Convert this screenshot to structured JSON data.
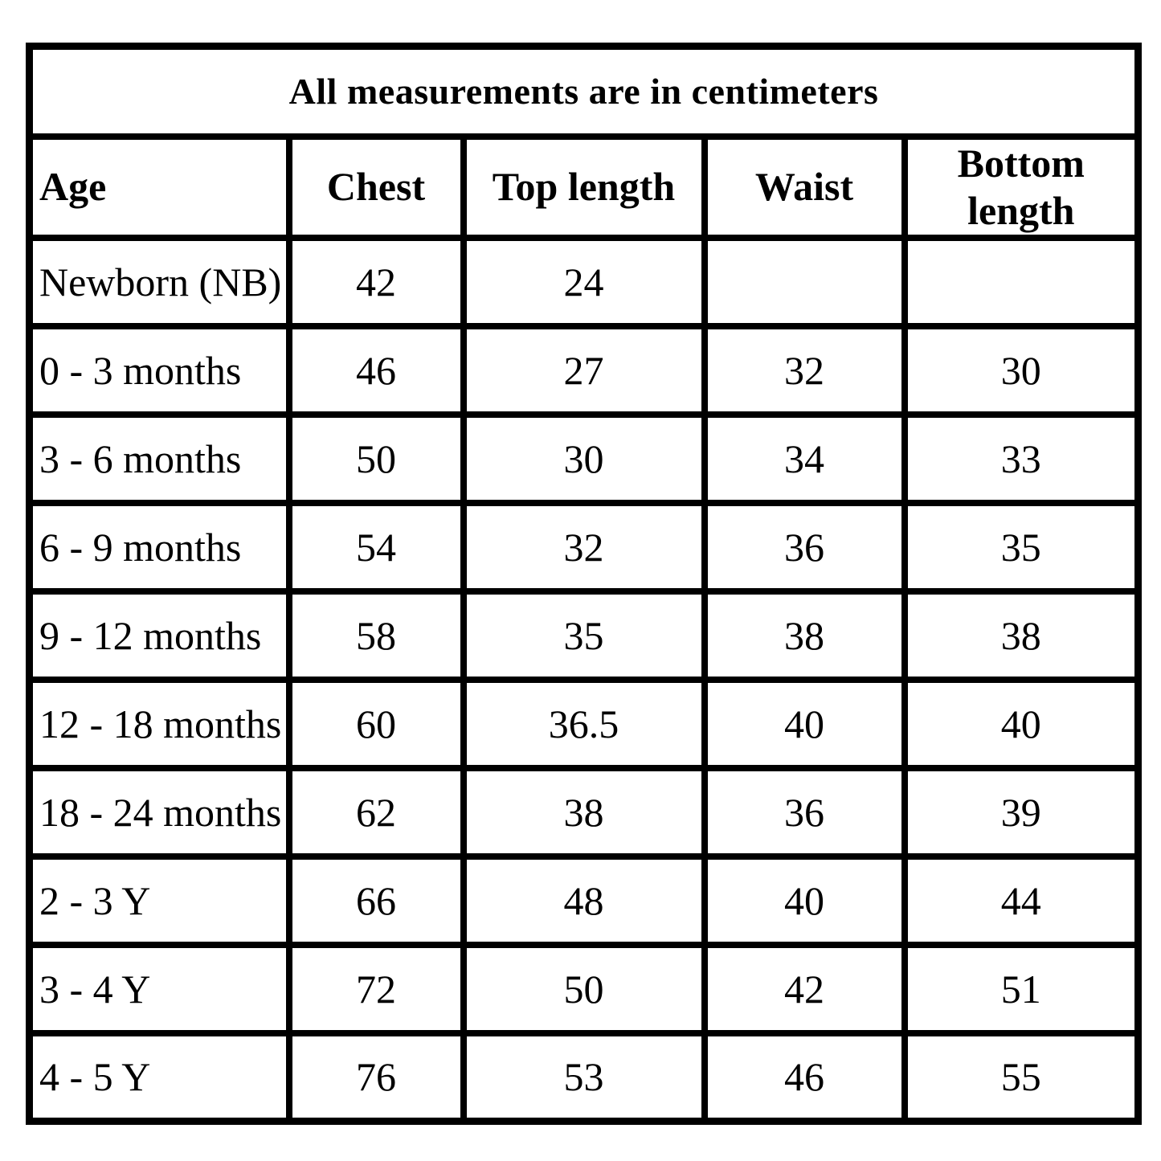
{
  "page": {
    "background": "#ffffff"
  },
  "chart_data": {
    "type": "table",
    "title": "All measurements are in centimeters",
    "columns": [
      "Age",
      "Chest",
      "Top length",
      "Waist",
      "Bottom length"
    ],
    "rows": [
      [
        "Newborn (NB)",
        "42",
        "24",
        "",
        ""
      ],
      [
        "0 - 3 months",
        "46",
        "27",
        "32",
        "30"
      ],
      [
        "3 - 6 months",
        "50",
        "30",
        "34",
        "33"
      ],
      [
        "6 - 9 months",
        "54",
        "32",
        "36",
        "35"
      ],
      [
        "9 - 12 months",
        "58",
        "35",
        "38",
        "38"
      ],
      [
        "12 - 18 months",
        "60",
        "36.5",
        "40",
        "40"
      ],
      [
        "18 - 24 months",
        "62",
        "38",
        "36",
        "39"
      ],
      [
        "2 - 3 Y",
        "66",
        "48",
        "40",
        "44"
      ],
      [
        "3 - 4 Y",
        "72",
        "50",
        "42",
        "51"
      ],
      [
        "4 - 5 Y",
        "76",
        "53",
        "46",
        "55"
      ]
    ],
    "colors": {
      "border": "#000000",
      "text": "#000000",
      "background": "#ffffff"
    },
    "layout": {
      "grid": "all-borders",
      "title_row_span": 5,
      "legend_position": "none"
    }
  }
}
